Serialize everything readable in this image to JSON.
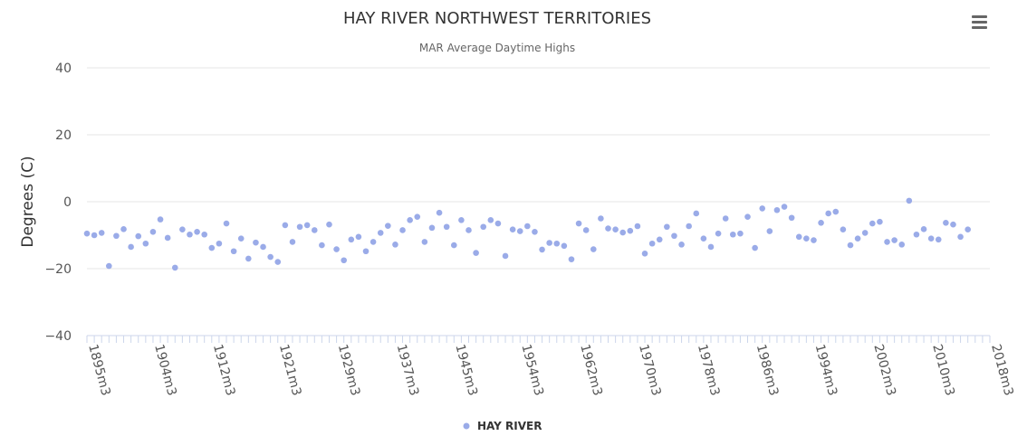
{
  "chart_data": {
    "type": "scatter",
    "title": "HAY RIVER NORTHWEST TERRITORIES",
    "subtitle": "MAR Average Daytime Highs",
    "ylabel": "Degrees (C)",
    "xlabel": "",
    "ylim": [
      -40,
      40
    ],
    "yticks": [
      -40,
      -20,
      0,
      20,
      40
    ],
    "xlim": [
      1895,
      2018
    ],
    "xticks": [
      {
        "year": 1895,
        "label": "1895m3"
      },
      {
        "year": 1904,
        "label": "1904m3"
      },
      {
        "year": 1912,
        "label": "1912m3"
      },
      {
        "year": 1921,
        "label": "1921m3"
      },
      {
        "year": 1929,
        "label": "1929m3"
      },
      {
        "year": 1937,
        "label": "1937m3"
      },
      {
        "year": 1945,
        "label": "1945m3"
      },
      {
        "year": 1954,
        "label": "1954m3"
      },
      {
        "year": 1962,
        "label": "1962m3"
      },
      {
        "year": 1970,
        "label": "1970m3"
      },
      {
        "year": 1978,
        "label": "1978m3"
      },
      {
        "year": 1986,
        "label": "1986m3"
      },
      {
        "year": 1994,
        "label": "1994m3"
      },
      {
        "year": 2002,
        "label": "2002m3"
      },
      {
        "year": 2010,
        "label": "2010m3"
      },
      {
        "year": 2018,
        "label": "2018m3"
      }
    ],
    "grid": true,
    "legend_position": "bottom-center",
    "series": [
      {
        "name": "HAY RIVER",
        "color": "#9aabe8",
        "points": [
          [
            1895,
            -9.5
          ],
          [
            1896,
            -10
          ],
          [
            1897,
            -9.3
          ],
          [
            1898,
            -19.2
          ],
          [
            1899,
            -10.2
          ],
          [
            1900,
            -8.2
          ],
          [
            1901,
            -13.5
          ],
          [
            1902,
            -10.3
          ],
          [
            1903,
            -12.5
          ],
          [
            1904,
            -9
          ],
          [
            1905,
            -5.3
          ],
          [
            1906,
            -10.8
          ],
          [
            1907,
            -19.7
          ],
          [
            1908,
            -8.3
          ],
          [
            1909,
            -9.8
          ],
          [
            1910,
            -9
          ],
          [
            1911,
            -9.8
          ],
          [
            1912,
            -13.8
          ],
          [
            1913,
            -12.5
          ],
          [
            1914,
            -6.5
          ],
          [
            1915,
            -14.8
          ],
          [
            1916,
            -11
          ],
          [
            1917,
            -17
          ],
          [
            1918,
            -12.2
          ],
          [
            1919,
            -13.5
          ],
          [
            1920,
            -16.5
          ],
          [
            1921,
            -18
          ],
          [
            1922,
            -7
          ],
          [
            1923,
            -12
          ],
          [
            1924,
            -7.5
          ],
          [
            1925,
            -7
          ],
          [
            1926,
            -8.5
          ],
          [
            1927,
            -13
          ],
          [
            1928,
            -6.8
          ],
          [
            1929,
            -14.2
          ],
          [
            1930,
            -17.5
          ],
          [
            1931,
            -11.3
          ],
          [
            1932,
            -10.5
          ],
          [
            1933,
            -14.8
          ],
          [
            1934,
            -12
          ],
          [
            1935,
            -9.3
          ],
          [
            1936,
            -7.2
          ],
          [
            1937,
            -12.8
          ],
          [
            1938,
            -8.5
          ],
          [
            1939,
            -5.5
          ],
          [
            1940,
            -4.5
          ],
          [
            1941,
            -12
          ],
          [
            1942,
            -7.8
          ],
          [
            1943,
            -3.3
          ],
          [
            1944,
            -7.5
          ],
          [
            1945,
            -13
          ],
          [
            1946,
            -5.5
          ],
          [
            1947,
            -8.5
          ],
          [
            1948,
            -15.3
          ],
          [
            1949,
            -7.5
          ],
          [
            1950,
            -5.5
          ],
          [
            1951,
            -6.5
          ],
          [
            1952,
            -16.2
          ],
          [
            1953,
            -8.3
          ],
          [
            1954,
            -8.8
          ],
          [
            1955,
            -7.3
          ],
          [
            1956,
            -9
          ],
          [
            1957,
            -14.3
          ],
          [
            1958,
            -12.3
          ],
          [
            1959,
            -12.5
          ],
          [
            1960,
            -13.2
          ],
          [
            1961,
            -17.2
          ],
          [
            1962,
            -6.5
          ],
          [
            1963,
            -8.5
          ],
          [
            1964,
            -14.2
          ],
          [
            1965,
            -5
          ],
          [
            1966,
            -8
          ],
          [
            1967,
            -8.3
          ],
          [
            1968,
            -9.2
          ],
          [
            1969,
            -8.7
          ],
          [
            1970,
            -7.3
          ],
          [
            1971,
            -15.5
          ],
          [
            1972,
            -12.5
          ],
          [
            1973,
            -11.3
          ],
          [
            1974,
            -7.5
          ],
          [
            1975,
            -10.2
          ],
          [
            1976,
            -12.8
          ],
          [
            1977,
            -7.3
          ],
          [
            1978,
            -3.5
          ],
          [
            1979,
            -11
          ],
          [
            1980,
            -13.5
          ],
          [
            1981,
            -9.5
          ],
          [
            1982,
            -5
          ],
          [
            1983,
            -9.8
          ],
          [
            1984,
            -9.5
          ],
          [
            1985,
            -4.5
          ],
          [
            1986,
            -13.8
          ],
          [
            1987,
            -2
          ],
          [
            1988,
            -8.8
          ],
          [
            1989,
            -2.5
          ],
          [
            1990,
            -1.5
          ],
          [
            1991,
            -4.8
          ],
          [
            1992,
            -10.5
          ],
          [
            1993,
            -11
          ],
          [
            1994,
            -11.5
          ],
          [
            1995,
            -6.3
          ],
          [
            1996,
            -3.5
          ],
          [
            1997,
            -3
          ],
          [
            1998,
            -8.3
          ],
          [
            1999,
            -13
          ],
          [
            2000,
            -11
          ],
          [
            2001,
            -9.3
          ],
          [
            2002,
            -6.5
          ],
          [
            2003,
            -6
          ],
          [
            2004,
            -12
          ],
          [
            2005,
            -11.5
          ],
          [
            2006,
            -12.8
          ],
          [
            2007,
            0.3
          ],
          [
            2008,
            -9.8
          ],
          [
            2009,
            -8.2
          ],
          [
            2010,
            -11
          ],
          [
            2011,
            -11.3
          ],
          [
            2012,
            -6.3
          ],
          [
            2013,
            -6.8
          ],
          [
            2014,
            -10.5
          ],
          [
            2015,
            -8.3
          ]
        ]
      }
    ]
  },
  "menu": {
    "icon": "hamburger-menu-icon"
  }
}
